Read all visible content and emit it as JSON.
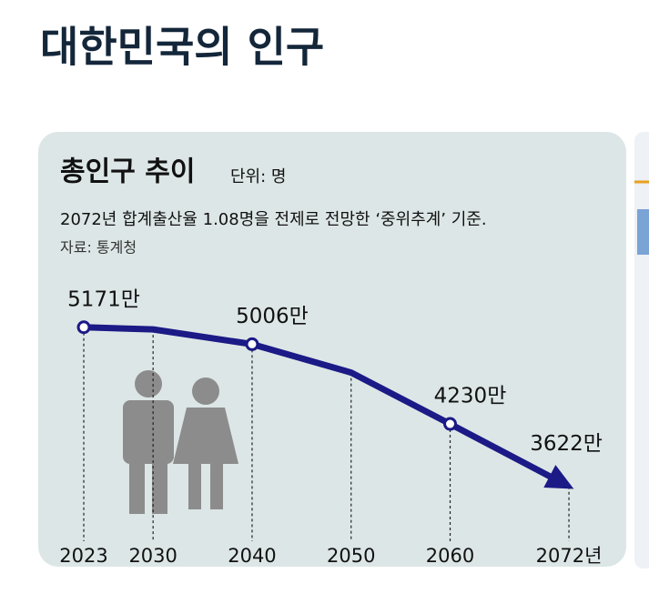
{
  "header": {
    "title": "대한민국의 인구"
  },
  "chart_data": {
    "type": "line",
    "title": "총인구 추이",
    "unit": "단위: 명",
    "subtitle": "2072년 합계출산율 1.08명을 전제로 전망한 ‘중위추계’ 기준.",
    "source": "자료: 통계청",
    "x": [
      2023,
      2030,
      2040,
      2050,
      2060,
      2072
    ],
    "values": [
      5171,
      5150,
      5006,
      4730,
      4230,
      3622
    ],
    "value_labels": [
      "5171만",
      null,
      "5006만",
      null,
      "4230만",
      "3622만"
    ],
    "color": "#1b1a86",
    "xlim": [
      2020,
      2074
    ],
    "xticks": [
      2023,
      2030,
      2040,
      2050,
      2060,
      {
        "value": 2072,
        "label": "2072년"
      }
    ],
    "ylim": [
      3000,
      5700
    ]
  }
}
